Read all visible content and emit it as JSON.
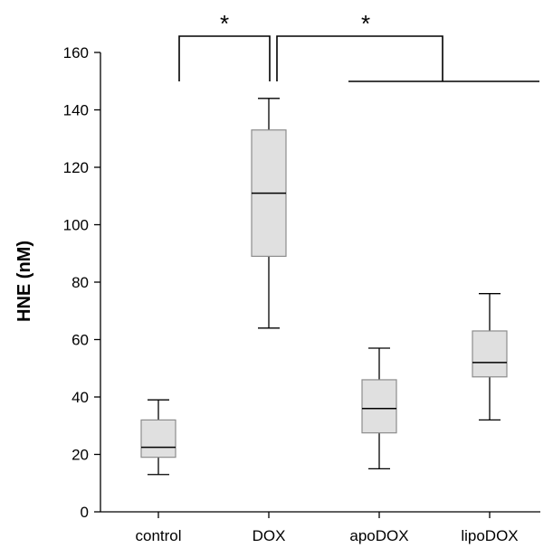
{
  "chart_data": {
    "type": "box",
    "title": "",
    "xlabel": "",
    "ylabel": "HNE (nM)",
    "ylim": [
      0,
      160
    ],
    "yticks": [
      0,
      20,
      40,
      60,
      80,
      100,
      120,
      140,
      160
    ],
    "grid": false,
    "legend": "none",
    "box_fill_color": "#e0e0e0",
    "box_edge_color": "#8c8c8c",
    "categories": [
      "control",
      "DOX",
      "apoDOX",
      "lipoDOX"
    ],
    "boxes": [
      {
        "category": "control",
        "min": 13,
        "q1": 19,
        "median": 22.5,
        "q3": 32,
        "max": 39
      },
      {
        "category": "DOX",
        "min": 64,
        "q1": 89,
        "median": 111,
        "q3": 133,
        "max": 144
      },
      {
        "category": "apoDOX",
        "min": 15,
        "q1": 27.5,
        "median": 36,
        "q3": 46,
        "max": 57
      },
      {
        "category": "lipoDOX",
        "min": 32,
        "q1": 47,
        "median": 52,
        "q3": 63,
        "max": 76
      }
    ],
    "annotations": [
      {
        "label": "*",
        "type": "significance",
        "compares": [
          "control",
          "DOX"
        ]
      },
      {
        "label": "*",
        "type": "significance",
        "compares": [
          "DOX",
          "apoDOX + lipoDOX"
        ]
      }
    ]
  }
}
